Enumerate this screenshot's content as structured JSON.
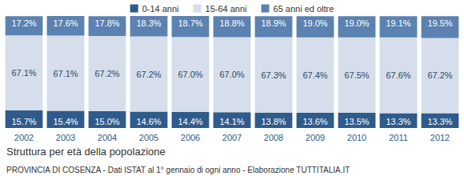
{
  "chart_data": {
    "type": "bar",
    "title": "Struttura per età della popolazione",
    "subtitle": "PROVINCIA DI COSENZA - Dati ISTAT al 1° gennaio di ogni anno - Elaborazione TUTTITALIA.IT",
    "categories": [
      "2002",
      "2003",
      "2004",
      "2005",
      "2006",
      "2007",
      "2008",
      "2009",
      "2010",
      "2011",
      "2012"
    ],
    "series": [
      {
        "name": "0-14 anni",
        "color": "#2f5b8c",
        "values": [
          15.7,
          15.4,
          15.0,
          14.6,
          14.4,
          14.1,
          13.8,
          13.6,
          13.5,
          13.3,
          13.3
        ],
        "value_labels": [
          "15.7%",
          "15.4%",
          "15.0%",
          "14.6%",
          "14.4%",
          "14.1%",
          "13.8%",
          "13.6%",
          "13.5%",
          "13.3%",
          "13.3%"
        ]
      },
      {
        "name": "15-64 anni",
        "color": "#d5deea",
        "values": [
          67.1,
          67.1,
          67.2,
          67.2,
          67.0,
          67.0,
          67.3,
          67.4,
          67.5,
          67.6,
          67.2
        ],
        "value_labels": [
          "67.1%",
          "67.1%",
          "67.2%",
          "67.2%",
          "67.0%",
          "67.0%",
          "67.3%",
          "67.4%",
          "67.5%",
          "67.6%",
          "67.2%"
        ]
      },
      {
        "name": "65 anni ed oltre",
        "color": "#5b82b1",
        "values": [
          17.2,
          17.6,
          17.8,
          18.3,
          18.7,
          18.8,
          18.9,
          19.0,
          19.0,
          19.1,
          19.5
        ],
        "value_labels": [
          "17.2%",
          "17.6%",
          "17.8%",
          "18.3%",
          "18.7%",
          "18.8%",
          "18.9%",
          "19.0%",
          "19.0%",
          "19.1%",
          "19.5%"
        ]
      }
    ],
    "ylim": [
      0,
      100.1
    ],
    "stacked": true,
    "data_labels": true,
    "tick_labels": "x",
    "legend": "top",
    "grid": false
  }
}
